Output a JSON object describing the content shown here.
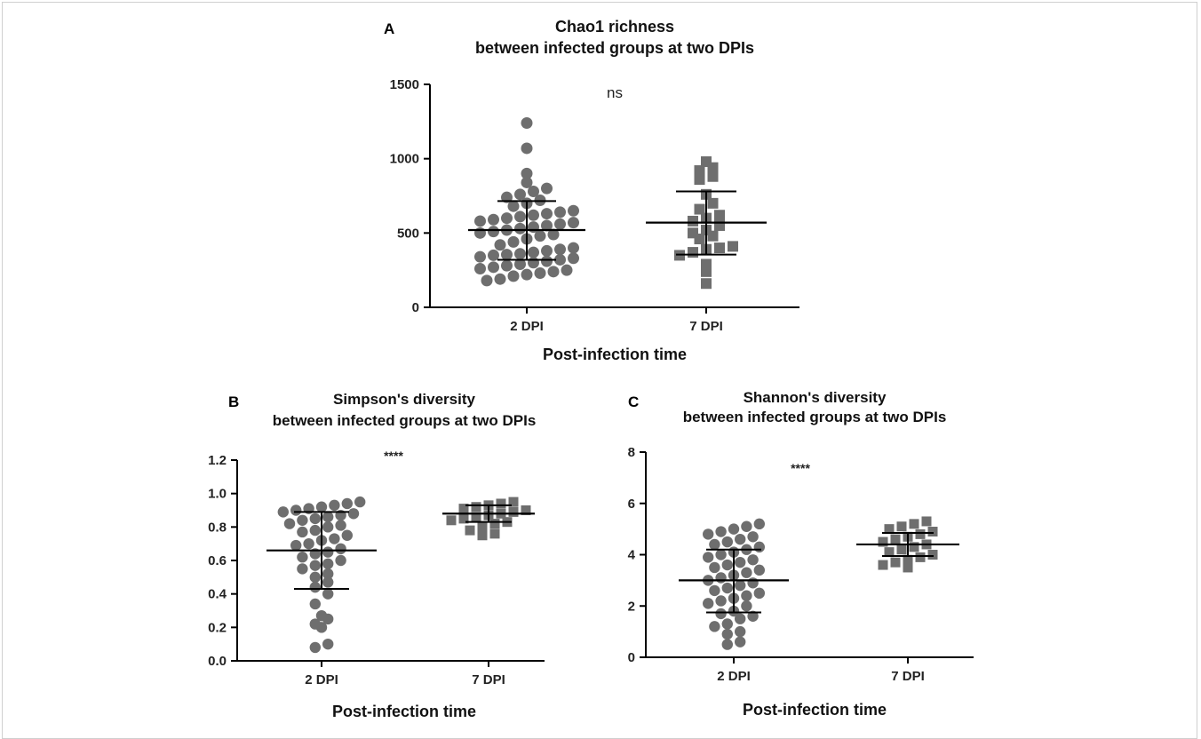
{
  "chart_data": [
    {
      "panel": "A",
      "type": "scatter",
      "title": [
        "Chao1 richness",
        "between infected groups at two DPIs"
      ],
      "xlabel": "Post-infection time",
      "ylabel": "",
      "categories": [
        "2 DPI",
        "7 DPI"
      ],
      "ylim": [
        0,
        1500
      ],
      "yticks": [
        0,
        500,
        1000,
        1500
      ],
      "significance": "ns",
      "series": [
        {
          "category": "2 DPI",
          "marker": "circle",
          "values": [
            180,
            190,
            210,
            220,
            230,
            240,
            250,
            260,
            270,
            280,
            290,
            300,
            310,
            320,
            330,
            340,
            350,
            355,
            360,
            370,
            380,
            390,
            400,
            420,
            440,
            460,
            480,
            490,
            500,
            510,
            520,
            530,
            540,
            550,
            560,
            570,
            580,
            590,
            600,
            610,
            620,
            630,
            640,
            650,
            680,
            700,
            720,
            740,
            760,
            780,
            800,
            840,
            900,
            1070,
            1240
          ],
          "mean": 520,
          "sd_upper": 715,
          "sd_lower": 320
        },
        {
          "category": "7 DPI",
          "marker": "square",
          "values": [
            160,
            240,
            290,
            350,
            370,
            390,
            400,
            410,
            460,
            480,
            500,
            520,
            550,
            580,
            600,
            620,
            660,
            700,
            760,
            860,
            880,
            920,
            940,
            980
          ],
          "mean": 570,
          "sd_upper": 780,
          "sd_lower": 355
        }
      ]
    },
    {
      "panel": "B",
      "type": "scatter",
      "title": [
        "Simpson's diversity",
        "between infected groups at two DPIs"
      ],
      "xlabel": "Post-infection time",
      "ylabel": "",
      "categories": [
        "2 DPI",
        "7 DPI"
      ],
      "ylim": [
        0,
        1.2
      ],
      "yticks": [
        "0.0",
        "0.2",
        "0.4",
        "0.6",
        "0.8",
        "1.0",
        "1.2"
      ],
      "significance": "****",
      "series": [
        {
          "category": "2 DPI",
          "marker": "circle",
          "values": [
            0.08,
            0.1,
            0.2,
            0.22,
            0.25,
            0.27,
            0.34,
            0.4,
            0.44,
            0.47,
            0.5,
            0.52,
            0.55,
            0.57,
            0.58,
            0.6,
            0.62,
            0.64,
            0.65,
            0.67,
            0.69,
            0.7,
            0.72,
            0.73,
            0.75,
            0.77,
            0.78,
            0.8,
            0.81,
            0.82,
            0.84,
            0.85,
            0.86,
            0.87,
            0.88,
            0.89,
            0.9,
            0.91,
            0.92,
            0.93,
            0.94,
            0.95
          ],
          "mean": 0.66,
          "sd_upper": 0.89,
          "sd_lower": 0.43
        },
        {
          "category": "7 DPI",
          "marker": "square",
          "values": [
            0.75,
            0.76,
            0.78,
            0.8,
            0.82,
            0.83,
            0.84,
            0.85,
            0.86,
            0.87,
            0.88,
            0.89,
            0.9,
            0.91,
            0.92,
            0.93,
            0.94,
            0.95
          ],
          "mean": 0.88,
          "sd_upper": 0.93,
          "sd_lower": 0.83
        }
      ]
    },
    {
      "panel": "C",
      "type": "scatter",
      "title": [
        "Shannon's diversity",
        "between infected groups at two DPIs"
      ],
      "xlabel": "Post-infection time",
      "ylabel": "",
      "categories": [
        "2 DPI",
        "7 DPI"
      ],
      "ylim": [
        0,
        8
      ],
      "yticks": [
        0,
        2,
        4,
        6,
        8
      ],
      "significance": "****",
      "series": [
        {
          "category": "2 DPI",
          "marker": "circle",
          "values": [
            0.5,
            0.6,
            0.9,
            1.0,
            1.2,
            1.3,
            1.5,
            1.6,
            1.7,
            1.8,
            2.0,
            2.1,
            2.2,
            2.3,
            2.4,
            2.5,
            2.6,
            2.7,
            2.8,
            2.9,
            3.0,
            3.1,
            3.2,
            3.3,
            3.4,
            3.5,
            3.6,
            3.7,
            3.8,
            3.9,
            4.0,
            4.1,
            4.2,
            4.3,
            4.4,
            4.5,
            4.6,
            4.7,
            4.8,
            4.9,
            5.0,
            5.1,
            5.2
          ],
          "mean": 3.0,
          "sd_upper": 4.2,
          "sd_lower": 1.75
        },
        {
          "category": "7 DPI",
          "marker": "square",
          "values": [
            3.5,
            3.6,
            3.7,
            3.8,
            3.9,
            4.0,
            4.1,
            4.2,
            4.3,
            4.4,
            4.5,
            4.6,
            4.7,
            4.8,
            4.9,
            5.0,
            5.1,
            5.2,
            5.3
          ],
          "mean": 4.4,
          "sd_upper": 4.85,
          "sd_lower": 3.95
        }
      ]
    }
  ],
  "colors": {
    "marker": "#6e6e6e",
    "axis": "#000000"
  }
}
